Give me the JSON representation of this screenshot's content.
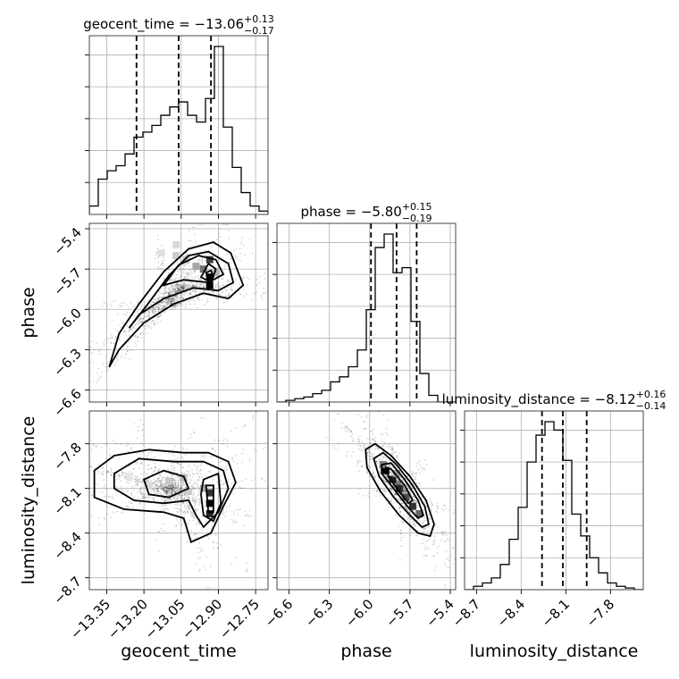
{
  "chart_data": {
    "type": "corner",
    "parameters": [
      "geocent_time",
      "phase",
      "luminosity_distance"
    ],
    "axis_labels": [
      "geocent_time",
      "phase",
      "luminosity_distance"
    ],
    "ranges": {
      "geocent_time": [
        -13.42,
        -12.7
      ],
      "phase": [
        -6.69,
        -5.36
      ],
      "luminosity_distance": [
        -8.78,
        -7.58
      ]
    },
    "ticks": {
      "geocent_time": [
        -13.35,
        -13.2,
        -13.05,
        -12.9,
        -12.75
      ],
      "phase": [
        -6.6,
        -6.3,
        -6.0,
        -5.7,
        -5.4
      ],
      "luminosity_distance": [
        -8.7,
        -8.4,
        -8.1,
        -7.8
      ]
    },
    "tick_labels": {
      "geocent_time": [
        "−13.35",
        "−13.20",
        "−13.05",
        "−12.90",
        "−12.75"
      ],
      "phase": [
        "−6.6",
        "−6.3",
        "−6.0",
        "−5.7",
        "−5.4"
      ],
      "luminosity_distance": [
        "−8.7",
        "−8.4",
        "−8.1",
        "−7.8"
      ]
    },
    "summaries": [
      {
        "param": "geocent_time",
        "prefix": "geocent_time = −13.06",
        "plus": "+0.13",
        "minus": "−0.17",
        "median": -13.06,
        "lower": -13.23,
        "upper": -12.93
      },
      {
        "param": "phase",
        "prefix": "phase = −5.80",
        "plus": "+0.15",
        "minus": "−0.19",
        "median": -5.8,
        "lower": -5.99,
        "upper": -5.65
      },
      {
        "param": "luminosity_distance",
        "prefix": "luminosity_distance = −8.12",
        "plus": "+0.16",
        "minus": "−0.14",
        "median": -8.12,
        "lower": -8.26,
        "upper": -7.96
      }
    ],
    "histograms": [
      {
        "param": "geocent_time",
        "bins": 20,
        "counts": [
          0.05,
          0.21,
          0.26,
          0.29,
          0.36,
          0.46,
          0.49,
          0.53,
          0.59,
          0.64,
          0.67,
          0.59,
          0.55,
          0.69,
          1.0,
          0.52,
          0.28,
          0.13,
          0.05,
          0.02
        ]
      },
      {
        "param": "phase",
        "bins": 20,
        "counts": [
          0.0,
          0.01,
          0.02,
          0.03,
          0.05,
          0.07,
          0.12,
          0.15,
          0.21,
          0.31,
          0.55,
          0.92,
          1.0,
          0.77,
          0.8,
          0.48,
          0.17,
          0.04,
          0.0,
          0.0
        ]
      },
      {
        "param": "luminosity_distance",
        "bins": 20,
        "counts": [
          0.0,
          0.02,
          0.04,
          0.07,
          0.15,
          0.3,
          0.49,
          0.76,
          0.92,
          1.0,
          0.95,
          0.77,
          0.45,
          0.32,
          0.19,
          0.1,
          0.04,
          0.02,
          0.01,
          0.0
        ]
      }
    ],
    "pairs": [
      {
        "x": "geocent_time",
        "y": "phase",
        "pixels": [
          [
            -12.935,
            -5.63,
            0.75
          ],
          [
            -12.935,
            -5.76,
            1.0
          ],
          [
            -12.935,
            -5.82,
            1.0
          ],
          [
            -12.96,
            -5.7,
            0.55
          ],
          [
            -12.99,
            -5.68,
            0.35
          ],
          [
            -13.03,
            -5.63,
            0.25
          ],
          [
            -13.07,
            -5.6,
            0.2
          ],
          [
            -13.07,
            -5.52,
            0.15
          ],
          [
            -13.13,
            -5.58,
            0.12
          ],
          [
            -12.91,
            -5.73,
            0.3
          ]
        ],
        "contours": [
          [
            [
              -13.34,
              -6.43
            ],
            [
              -13.3,
              -6.18
            ],
            [
              -13.22,
              -5.96
            ],
            [
              -13.12,
              -5.72
            ],
            [
              -13.02,
              -5.55
            ],
            [
              -12.92,
              -5.5
            ],
            [
              -12.85,
              -5.58
            ],
            [
              -12.8,
              -5.82
            ],
            [
              -12.86,
              -5.92
            ],
            [
              -12.96,
              -5.88
            ],
            [
              -13.08,
              -5.96
            ],
            [
              -13.2,
              -6.1
            ],
            [
              -13.3,
              -6.3
            ],
            [
              -13.34,
              -6.43
            ]
          ],
          [
            [
              -13.26,
              -6.14
            ],
            [
              -13.18,
              -5.95
            ],
            [
              -13.1,
              -5.75
            ],
            [
              -13.02,
              -5.6
            ],
            [
              -12.94,
              -5.57
            ],
            [
              -12.86,
              -5.66
            ],
            [
              -12.84,
              -5.8
            ],
            [
              -12.9,
              -5.86
            ],
            [
              -13.0,
              -5.84
            ],
            [
              -13.12,
              -5.92
            ],
            [
              -13.22,
              -6.04
            ],
            [
              -13.26,
              -6.14
            ]
          ],
          [
            [
              -13.12,
              -5.82
            ],
            [
              -13.06,
              -5.67
            ],
            [
              -12.98,
              -5.6
            ],
            [
              -12.91,
              -5.63
            ],
            [
              -12.88,
              -5.74
            ],
            [
              -12.94,
              -5.8
            ],
            [
              -13.04,
              -5.78
            ],
            [
              -13.12,
              -5.82
            ]
          ],
          [
            [
              -12.97,
              -5.76
            ],
            [
              -12.94,
              -5.66
            ],
            [
              -12.91,
              -5.7
            ],
            [
              -12.93,
              -5.8
            ],
            [
              -12.97,
              -5.76
            ]
          ],
          [
            [
              -12.95,
              -5.73
            ],
            [
              -12.93,
              -5.71
            ],
            [
              -12.92,
              -5.76
            ],
            [
              -12.94,
              -5.78
            ],
            [
              -12.95,
              -5.73
            ]
          ]
        ]
      },
      {
        "x": "geocent_time",
        "y": "luminosity_distance",
        "pixels": [
          [
            -12.935,
            -8.13,
            0.8
          ],
          [
            -12.935,
            -8.2,
            1.0
          ],
          [
            -12.935,
            -8.27,
            0.85
          ],
          [
            -12.96,
            -8.1,
            0.35
          ],
          [
            -13.1,
            -8.05,
            0.22
          ],
          [
            -13.04,
            -8.03,
            0.28
          ],
          [
            -13.18,
            -8.08,
            0.15
          ],
          [
            -13.26,
            -8.02,
            0.1
          ],
          [
            -13.02,
            -8.12,
            0.2
          ]
        ],
        "contours": [
          [
            [
              -13.4,
              -7.98
            ],
            [
              -13.32,
              -7.88
            ],
            [
              -13.18,
              -7.84
            ],
            [
              -13.04,
              -7.86
            ],
            [
              -12.94,
              -7.86
            ],
            [
              -12.86,
              -7.92
            ],
            [
              -12.83,
              -8.06
            ],
            [
              -12.88,
              -8.22
            ],
            [
              -12.93,
              -8.4
            ],
            [
              -13.01,
              -8.46
            ],
            [
              -13.04,
              -8.3
            ],
            [
              -13.12,
              -8.26
            ],
            [
              -13.28,
              -8.24
            ],
            [
              -13.4,
              -8.16
            ],
            [
              -13.4,
              -7.98
            ]
          ],
          [
            [
              -13.32,
              -8.0
            ],
            [
              -13.22,
              -7.9
            ],
            [
              -13.08,
              -7.92
            ],
            [
              -12.96,
              -7.92
            ],
            [
              -12.88,
              -7.98
            ],
            [
              -12.86,
              -8.1
            ],
            [
              -12.9,
              -8.26
            ],
            [
              -12.96,
              -8.36
            ],
            [
              -12.99,
              -8.28
            ],
            [
              -13.02,
              -8.18
            ],
            [
              -13.12,
              -8.2
            ],
            [
              -13.24,
              -8.18
            ],
            [
              -13.32,
              -8.1
            ],
            [
              -13.32,
              -8.0
            ]
          ],
          [
            [
              -13.2,
              -8.04
            ],
            [
              -13.12,
              -7.98
            ],
            [
              -13.04,
              -8.02
            ],
            [
              -13.02,
              -8.1
            ],
            [
              -13.1,
              -8.16
            ],
            [
              -13.18,
              -8.14
            ],
            [
              -13.2,
              -8.04
            ]
          ],
          [
            [
              -12.96,
              -8.04
            ],
            [
              -12.9,
              -8.0
            ],
            [
              -12.89,
              -8.2
            ],
            [
              -12.92,
              -8.32
            ],
            [
              -12.96,
              -8.28
            ],
            [
              -12.97,
              -8.14
            ],
            [
              -12.96,
              -8.04
            ]
          ],
          [
            [
              -12.95,
              -8.08
            ],
            [
              -12.92,
              -8.08
            ],
            [
              -12.92,
              -8.26
            ],
            [
              -12.94,
              -8.26
            ],
            [
              -12.95,
              -8.08
            ]
          ]
        ]
      },
      {
        "x": "phase",
        "y": "luminosity_distance",
        "pixels": [
          [
            -5.88,
            -7.98,
            1.0
          ],
          [
            -5.83,
            -8.04,
            0.9
          ],
          [
            -5.78,
            -8.1,
            0.85
          ],
          [
            -5.73,
            -8.16,
            0.7
          ],
          [
            -5.68,
            -8.22,
            0.8
          ],
          [
            -5.63,
            -8.27,
            0.6
          ],
          [
            -5.9,
            -7.94,
            0.5
          ],
          [
            -5.8,
            -8.0,
            0.4
          ]
        ],
        "contours": [
          [
            [
              -6.03,
              -7.84
            ],
            [
              -5.96,
              -7.8
            ],
            [
              -5.84,
              -7.88
            ],
            [
              -5.7,
              -8.02
            ],
            [
              -5.58,
              -8.18
            ],
            [
              -5.52,
              -8.34
            ],
            [
              -5.55,
              -8.42
            ],
            [
              -5.64,
              -8.4
            ],
            [
              -5.78,
              -8.28
            ],
            [
              -5.92,
              -8.12
            ],
            [
              -6.02,
              -7.96
            ],
            [
              -6.03,
              -7.84
            ]
          ],
          [
            [
              -5.97,
              -7.9
            ],
            [
              -5.9,
              -7.86
            ],
            [
              -5.8,
              -7.94
            ],
            [
              -5.68,
              -8.08
            ],
            [
              -5.59,
              -8.22
            ],
            [
              -5.56,
              -8.34
            ],
            [
              -5.61,
              -8.36
            ],
            [
              -5.7,
              -8.28
            ],
            [
              -5.82,
              -8.16
            ],
            [
              -5.93,
              -8.02
            ],
            [
              -5.97,
              -7.9
            ]
          ],
          [
            [
              -5.91,
              -7.94
            ],
            [
              -5.84,
              -7.93
            ],
            [
              -5.74,
              -8.04
            ],
            [
              -5.64,
              -8.18
            ],
            [
              -5.6,
              -8.28
            ],
            [
              -5.64,
              -8.3
            ],
            [
              -5.72,
              -8.22
            ],
            [
              -5.84,
              -8.08
            ],
            [
              -5.91,
              -8.0
            ],
            [
              -5.91,
              -7.94
            ]
          ],
          [
            [
              -5.88,
              -7.96
            ],
            [
              -5.84,
              -7.97
            ],
            [
              -5.74,
              -8.08
            ],
            [
              -5.68,
              -8.18
            ],
            [
              -5.71,
              -8.2
            ],
            [
              -5.78,
              -8.12
            ],
            [
              -5.86,
              -8.02
            ],
            [
              -5.88,
              -7.96
            ]
          ]
        ]
      }
    ],
    "grid": true
  }
}
